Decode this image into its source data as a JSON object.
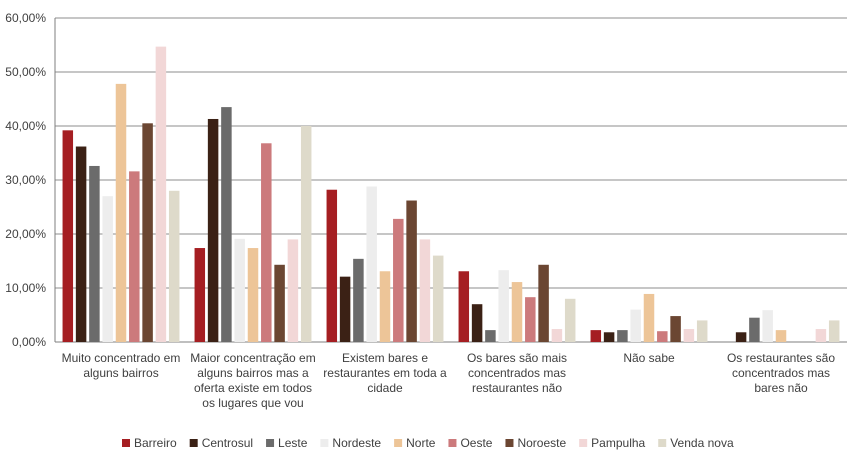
{
  "chart_data": {
    "type": "bar",
    "title": "",
    "xlabel": "",
    "ylabel": "",
    "ylim": [
      0,
      60
    ],
    "y_ticks": [
      "0,00%",
      "10,00%",
      "20,00%",
      "30,00%",
      "40,00%",
      "50,00%",
      "60,00%"
    ],
    "grid": true,
    "legend_position": "bottom",
    "categories": [
      [
        "Muito concentrado em",
        "alguns bairros"
      ],
      [
        "Maior concentração em",
        "alguns bairros mas a",
        "oferta existe em todos",
        "os lugares que vou"
      ],
      [
        "Existem bares e",
        "restaurantes em toda a",
        "cidade"
      ],
      [
        "Os bares são mais",
        "concentrados mas",
        "restaurantes não"
      ],
      [
        "Não sabe"
      ],
      [
        "Os restaurantes são",
        "concentrados mas",
        "bares não"
      ]
    ],
    "series": [
      {
        "name": "Barreiro",
        "color": "#A51E22",
        "values": [
          39.2,
          17.4,
          28.2,
          13.1,
          2.2,
          0.0
        ]
      },
      {
        "name": "Centrosul",
        "color": "#3B2115",
        "values": [
          36.2,
          41.3,
          12.1,
          7.0,
          1.8,
          1.8
        ]
      },
      {
        "name": "Leste",
        "color": "#6B6B6B",
        "values": [
          32.6,
          43.5,
          15.4,
          2.2,
          2.2,
          4.5
        ]
      },
      {
        "name": "Nordeste",
        "color": "#EDEDED",
        "values": [
          27.0,
          19.1,
          28.8,
          13.3,
          6.0,
          5.9
        ]
      },
      {
        "name": "Norte",
        "color": "#EDC598",
        "values": [
          47.8,
          17.4,
          13.1,
          11.1,
          8.9,
          2.2
        ]
      },
      {
        "name": "Oeste",
        "color": "#CC7A7C",
        "values": [
          31.6,
          36.8,
          22.8,
          8.3,
          2.0,
          0.0
        ]
      },
      {
        "name": "Noroeste",
        "color": "#6B4632",
        "values": [
          40.5,
          14.3,
          26.2,
          14.3,
          4.8,
          0.0
        ]
      },
      {
        "name": "Pampulha",
        "color": "#F2D7D7",
        "values": [
          54.7,
          19.0,
          19.0,
          2.4,
          2.4,
          2.4
        ]
      },
      {
        "name": "Venda nova",
        "color": "#DEDACA",
        "values": [
          28.0,
          40.0,
          16.0,
          8.0,
          4.0,
          4.0
        ]
      }
    ]
  }
}
